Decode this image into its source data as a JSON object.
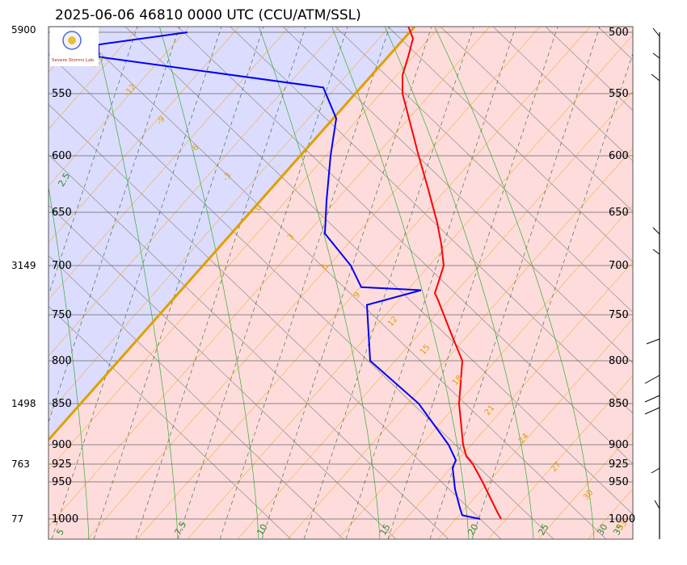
{
  "title": "2025-06-06 46810 0000 UTC (CCU/ATM/SSL)",
  "logo": {
    "text": "Severe Storms Lab."
  },
  "chart_data": {
    "type": "line",
    "title": "2025-06-06 46810 0000 UTC (CCU/ATM/SSL)",
    "xlabel": "",
    "ylabel": "",
    "pressure_levels": [
      1000,
      950,
      925,
      900,
      850,
      800,
      750,
      700,
      650,
      600,
      550,
      500
    ],
    "height_labels": [
      {
        "p": 1000,
        "label": "77"
      },
      {
        "p": 925,
        "label": "763"
      },
      {
        "p": 850,
        "label": "1498"
      },
      {
        "p": 700,
        "label": "3149"
      },
      {
        "p": 500,
        "label": "5900"
      }
    ],
    "temperature_ticks": [
      5,
      7.5,
      10,
      15,
      20,
      25,
      30,
      35
    ],
    "mixing_ratio_labels": [
      "12",
      "10",
      "8",
      "6",
      "4",
      "2",
      "0",
      "-3",
      "-6",
      "-9",
      "-12",
      "-15",
      "-18",
      "-21",
      "-24",
      "-27",
      "-30"
    ],
    "dry_adiabat_labels": [
      "-15",
      "-12",
      "-9",
      "-6",
      "-3",
      "0",
      "3",
      "6",
      "9",
      "12",
      "15",
      "18",
      "21",
      "24",
      "27",
      "30",
      "33"
    ],
    "green_labels": [
      "2.5",
      "5",
      "7.5",
      "10",
      "15",
      "20",
      "25",
      "30",
      "35"
    ],
    "series": [
      {
        "name": "",
        "color": "#ff0000",
        "points": [
          {
            "p": 1000,
            "x": 620
          },
          {
            "p": 990,
            "x": 615
          },
          {
            "p": 950,
            "x": 597
          },
          {
            "p": 925,
            "x": 585
          },
          {
            "p": 915,
            "x": 577
          },
          {
            "p": 900,
            "x": 573
          },
          {
            "p": 850,
            "x": 568
          },
          {
            "p": 800,
            "x": 572
          },
          {
            "p": 770,
            "x": 558
          },
          {
            "p": 735,
            "x": 542
          },
          {
            "p": 728,
            "x": 538
          },
          {
            "p": 718,
            "x": 542
          },
          {
            "p": 700,
            "x": 549
          },
          {
            "p": 680,
            "x": 546
          },
          {
            "p": 660,
            "x": 541
          },
          {
            "p": 630,
            "x": 530
          },
          {
            "p": 600,
            "x": 518
          },
          {
            "p": 575,
            "x": 508
          },
          {
            "p": 550,
            "x": 498
          },
          {
            "p": 535,
            "x": 498
          },
          {
            "p": 520,
            "x": 505
          },
          {
            "p": 505,
            "x": 511
          },
          {
            "p": 495,
            "x": 505
          }
        ]
      },
      {
        "name": "",
        "color": "#0000ff",
        "points": [
          {
            "p": 1000,
            "x": 594
          },
          {
            "p": 995,
            "x": 572
          },
          {
            "p": 985,
            "x": 569
          },
          {
            "p": 960,
            "x": 563
          },
          {
            "p": 930,
            "x": 560
          },
          {
            "p": 920,
            "x": 564
          },
          {
            "p": 900,
            "x": 555
          },
          {
            "p": 850,
            "x": 518
          },
          {
            "p": 800,
            "x": 458
          },
          {
            "p": 740,
            "x": 454
          },
          {
            "p": 725,
            "x": 521
          },
          {
            "p": 722,
            "x": 447
          },
          {
            "p": 700,
            "x": 434
          },
          {
            "p": 670,
            "x": 402
          },
          {
            "p": 640,
            "x": 404
          },
          {
            "p": 600,
            "x": 409
          },
          {
            "p": 570,
            "x": 416
          },
          {
            "p": 545,
            "x": 400
          },
          {
            "p": 520,
            "x": 122
          },
          {
            "p": 510,
            "x": 122
          },
          {
            "p": 500,
            "x": 232
          }
        ]
      }
    ],
    "wind_barbs": true,
    "legend": "none"
  }
}
